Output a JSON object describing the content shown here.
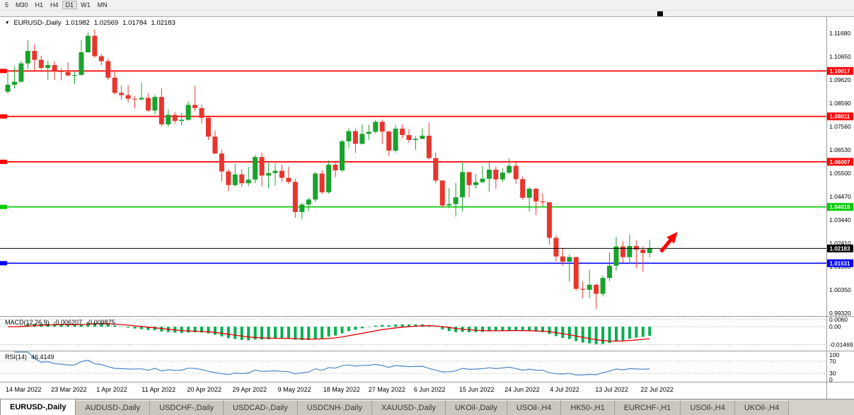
{
  "toolbar": {
    "timeframes": [
      "5",
      "M30",
      "H1",
      "H4",
      "D1",
      "W1",
      "MN"
    ],
    "active": "D1"
  },
  "icons": {
    "chart_dropdown": "▼"
  },
  "tabs": [
    {
      "label": "EURUSD-,Daily",
      "active": true
    },
    {
      "label": "AUDUSD-,Daily",
      "active": false
    },
    {
      "label": "USDCHF-,Daily",
      "active": false
    },
    {
      "label": "USDCAD-,Daily",
      "active": false
    },
    {
      "label": "USDCNH-,Daily",
      "active": false
    },
    {
      "label": "XAUUSD-,Daily",
      "active": false
    },
    {
      "label": "UKOil-,Daily",
      "active": false
    },
    {
      "label": "USOil-,H4",
      "active": false
    },
    {
      "label": "HK50-,H1",
      "active": false
    },
    {
      "label": "EURCHF-,H1",
      "active": false
    },
    {
      "label": "USOil-,H4",
      "active": false
    },
    {
      "label": "UKOil-,H4",
      "active": false
    }
  ],
  "chart_data": {
    "type": "candlestick",
    "symbol": "EURUSD-,Daily",
    "ohlc_display": {
      "open": "1.01982",
      "high": "1.02569",
      "low": "1.01784",
      "close": "1.02183"
    },
    "ylim": [
      0.992,
      1.124
    ],
    "price_axis_ticks": [
      "1.11680",
      "1.10650",
      "1.09620",
      "1.08590",
      "1.07560",
      "1.06530",
      "1.05500",
      "1.04470",
      "1.03440",
      "1.02410",
      "1.01380",
      "1.00350",
      "0.99320"
    ],
    "x_tick_labels": [
      "14 Mar 2022",
      "23 Mar 2022",
      "1 Apr 2022",
      "11 Apr 2022",
      "20 Apr 2022",
      "29 Apr 2022",
      "9 May 2022",
      "18 May 2022",
      "27 May 2022",
      "6 Jun 2022",
      "15 Jun 2022",
      "24 Jun 2022",
      "4 Jul 2022",
      "13 Jul 2022",
      "22 Jul 2022"
    ],
    "levels": [
      {
        "price": 1.10017,
        "label": "1.10017",
        "color": "#FF0000"
      },
      {
        "price": 1.08011,
        "label": "1.08011",
        "color": "#FF0000"
      },
      {
        "price": 1.06007,
        "label": "1.06007",
        "color": "#FF0000"
      },
      {
        "price": 1.04016,
        "label": "1.04016",
        "color": "#00CC00"
      },
      {
        "price": 1.01531,
        "label": "1.01531",
        "color": "#0000FF"
      }
    ],
    "current_price": {
      "price": 1.02183,
      "label": "1.02183",
      "color": "#000000"
    },
    "annotation_arrow": {
      "color": "#FF0000",
      "direction": "up-right"
    },
    "colors": {
      "bull": "#18A32B",
      "bear": "#E8362D"
    },
    "indicators": {
      "macd": {
        "name": "MACD(12,26,9)",
        "value": "-0.006207",
        "signal": "-0.009875",
        "histogram_color": "#00B050",
        "signal_color": "#E00000",
        "axis_labels": [
          {
            "text": "0.0060",
            "value": 0.006
          },
          {
            "text": "0.00",
            "value": 0
          },
          {
            "text": "-0.01469",
            "value": -0.01469
          }
        ]
      },
      "rsi": {
        "name": "RSI(14)",
        "value": "46.4149",
        "line_color": "#4A86C8",
        "levels": [
          70,
          30
        ],
        "axis_labels": [
          {
            "text": "100",
            "value": 100
          },
          {
            "text": "70",
            "value": 70
          },
          {
            "text": "30",
            "value": 30
          },
          {
            "text": "0",
            "value": 0
          }
        ]
      }
    },
    "candles_ohlc": [
      [
        1.091,
        1.0992,
        1.0901,
        1.0941
      ],
      [
        1.0941,
        1.102,
        1.0925,
        1.0954
      ],
      [
        1.0954,
        1.1046,
        1.095,
        1.1035
      ],
      [
        1.1035,
        1.1137,
        1.1009,
        1.109
      ],
      [
        1.109,
        1.1119,
        1.1003,
        1.1051
      ],
      [
        1.1051,
        1.1069,
        1.1007,
        1.1015
      ],
      [
        1.1015,
        1.1047,
        1.0962,
        1.1028
      ],
      [
        1.1028,
        1.1044,
        1.0963,
        1.1003
      ],
      [
        1.1003,
        1.1014,
        1.096,
        1.0997
      ],
      [
        1.0997,
        1.1039,
        1.0978,
        1.0982
      ],
      [
        1.0982,
        1.0999,
        1.0944,
        1.0984
      ],
      [
        1.0984,
        1.1137,
        1.0982,
        1.1084
      ],
      [
        1.1084,
        1.1171,
        1.1083,
        1.1157
      ],
      [
        1.1157,
        1.1185,
        1.106,
        1.1067
      ],
      [
        1.1067,
        1.1077,
        1.1027,
        1.1045
      ],
      [
        1.1045,
        1.1056,
        1.0962,
        1.0972
      ],
      [
        1.0972,
        1.0999,
        1.0898,
        1.0905
      ],
      [
        1.0905,
        1.0937,
        1.0874,
        1.0895
      ],
      [
        1.0895,
        1.0939,
        1.0863,
        1.0879
      ],
      [
        1.0879,
        1.089,
        1.0836,
        1.0876
      ],
      [
        1.0876,
        1.095,
        1.0872,
        1.0883
      ],
      [
        1.0883,
        1.0904,
        1.0821,
        1.0827
      ],
      [
        1.0827,
        1.0896,
        1.0809,
        1.0887
      ],
      [
        1.0887,
        1.0924,
        1.0757,
        1.0766
      ],
      [
        1.0766,
        1.083,
        1.0756,
        1.0808
      ],
      [
        1.0808,
        1.0821,
        1.0769,
        1.0781
      ],
      [
        1.0781,
        1.0815,
        1.0761,
        1.0786
      ],
      [
        1.0786,
        1.0867,
        1.0783,
        1.0852
      ],
      [
        1.0852,
        1.0936,
        1.0824,
        1.0838
      ],
      [
        1.0838,
        1.0852,
        1.077,
        1.0795
      ],
      [
        1.0795,
        1.08,
        1.0697,
        1.0712
      ],
      [
        1.0712,
        1.0738,
        1.0635,
        1.0637
      ],
      [
        1.0637,
        1.0655,
        1.0514,
        1.0558
      ],
      [
        1.0558,
        1.0568,
        1.0471,
        1.0498
      ],
      [
        1.0498,
        1.0593,
        1.0492,
        1.0545
      ],
      [
        1.0545,
        1.0568,
        1.049,
        1.0506
      ],
      [
        1.0506,
        1.0578,
        1.0493,
        1.0522
      ],
      [
        1.0522,
        1.0631,
        1.0506,
        1.0622
      ],
      [
        1.0622,
        1.0642,
        1.0492,
        1.054
      ],
      [
        1.054,
        1.0599,
        1.0483,
        1.0551
      ],
      [
        1.0551,
        1.0594,
        1.0495,
        1.0561
      ],
      [
        1.0561,
        1.0588,
        1.0513,
        1.053
      ],
      [
        1.053,
        1.0579,
        1.0503,
        1.0512
      ],
      [
        1.0512,
        1.0525,
        1.0354,
        1.0379
      ],
      [
        1.0379,
        1.042,
        1.0348,
        1.0412
      ],
      [
        1.0412,
        1.0443,
        1.0383,
        1.0434
      ],
      [
        1.0434,
        1.0556,
        1.0424,
        1.0549
      ],
      [
        1.0549,
        1.0564,
        1.0459,
        1.0466
      ],
      [
        1.0466,
        1.0607,
        1.046,
        1.0588
      ],
      [
        1.0588,
        1.0605,
        1.0532,
        1.0563
      ],
      [
        1.0563,
        1.0697,
        1.0556,
        1.0691
      ],
      [
        1.0691,
        1.0748,
        1.0661,
        1.0736
      ],
      [
        1.0736,
        1.0747,
        1.0641,
        1.068
      ],
      [
        1.068,
        1.0765,
        1.0677,
        1.0724
      ],
      [
        1.0724,
        1.0764,
        1.0697,
        1.0733
      ],
      [
        1.0733,
        1.0786,
        1.0726,
        1.0777
      ],
      [
        1.0777,
        1.0787,
        1.0678,
        1.0734
      ],
      [
        1.0734,
        1.0739,
        1.0627,
        1.065
      ],
      [
        1.065,
        1.0764,
        1.0641,
        1.0747
      ],
      [
        1.0747,
        1.0765,
        1.0703,
        1.0719
      ],
      [
        1.0719,
        1.0745,
        1.0684,
        1.0697
      ],
      [
        1.0697,
        1.0714,
        1.0653,
        1.0702
      ],
      [
        1.0702,
        1.0749,
        1.07,
        1.0716
      ],
      [
        1.0716,
        1.0774,
        1.0611,
        1.0617
      ],
      [
        1.0617,
        1.0642,
        1.0506,
        1.0518
      ],
      [
        1.0518,
        1.0519,
        1.0399,
        1.0408
      ],
      [
        1.0408,
        1.0485,
        1.0396,
        1.0414
      ],
      [
        1.0414,
        1.0508,
        1.0359,
        1.0444
      ],
      [
        1.0444,
        1.0601,
        1.0381,
        1.0555
      ],
      [
        1.0555,
        1.0557,
        1.0444,
        1.0498
      ],
      [
        1.0498,
        1.0546,
        1.0482,
        1.0511
      ],
      [
        1.0511,
        1.0582,
        1.0507,
        1.0526
      ],
      [
        1.0526,
        1.0605,
        1.0469,
        1.0566
      ],
      [
        1.0566,
        1.058,
        1.0482,
        1.0523
      ],
      [
        1.0523,
        1.0571,
        1.0511,
        1.0553
      ],
      [
        1.0553,
        1.0615,
        1.0545,
        1.0583
      ],
      [
        1.0583,
        1.0606,
        1.0503,
        1.0524
      ],
      [
        1.0524,
        1.0536,
        1.0433,
        1.0442
      ],
      [
        1.0442,
        1.0489,
        1.0381,
        1.0482
      ],
      [
        1.0482,
        1.0486,
        1.0365,
        1.0426
      ],
      [
        1.0426,
        1.0462,
        1.0405,
        1.0422
      ],
      [
        1.0422,
        1.0424,
        1.0235,
        1.0265
      ],
      [
        1.0265,
        1.0277,
        1.0161,
        1.0183
      ],
      [
        1.0183,
        1.0221,
        1.0143,
        1.016
      ],
      [
        1.016,
        1.0192,
        1.0072,
        1.018
      ],
      [
        1.018,
        1.0182,
        1.0032,
        1.004
      ],
      [
        1.004,
        1.0073,
        0.9998,
        1.0036
      ],
      [
        1.0036,
        1.0122,
        0.9998,
        1.0058
      ],
      [
        1.0058,
        1.0062,
        0.9952,
        1.0018
      ],
      [
        1.0018,
        1.0098,
        1.0006,
        1.0088
      ],
      [
        1.0088,
        1.0201,
        1.0075,
        1.0142
      ],
      [
        1.0142,
        1.0269,
        1.0121,
        1.0227
      ],
      [
        1.0227,
        1.025,
        1.0155,
        1.018
      ],
      [
        1.018,
        1.0279,
        1.0152,
        1.0229
      ],
      [
        1.0229,
        1.0255,
        1.0131,
        1.0213
      ],
      [
        1.0213,
        1.0226,
        1.0115,
        1.0198
      ],
      [
        1.01982,
        1.02569,
        1.01784,
        1.02183
      ]
    ]
  }
}
